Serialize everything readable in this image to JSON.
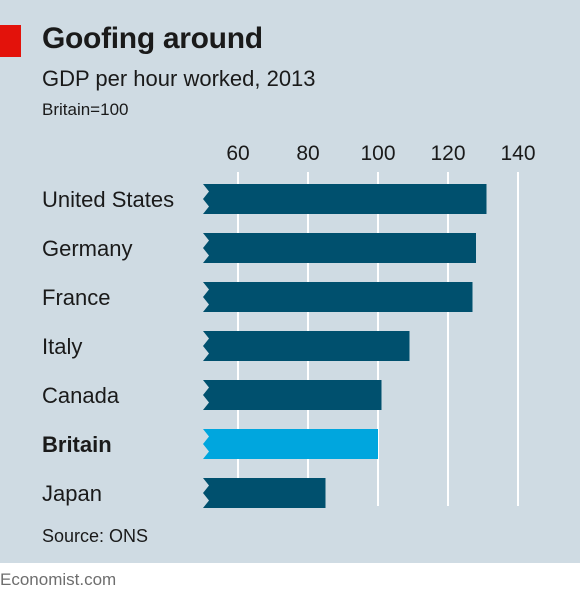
{
  "header": {
    "title": "Goofing around",
    "subtitle": "GDP per hour worked, 2013",
    "unit_note": "Britain=100"
  },
  "footer": {
    "source": "Source: ONS",
    "brand": "Economist.com"
  },
  "colors": {
    "background": "#cfdbe3",
    "bar": "#00506e",
    "highlight_bar": "#00a6de",
    "gridline": "#ffffff",
    "brand_red": "#e3120b"
  },
  "chart_data": {
    "type": "bar",
    "orientation": "horizontal",
    "title": "Goofing around",
    "subtitle": "GDP per hour worked, 2013",
    "unit_note": "Britain=100",
    "categories": [
      "United States",
      "Germany",
      "France",
      "Italy",
      "Canada",
      "Britain",
      "Japan"
    ],
    "values": [
      131,
      128,
      127,
      109,
      101,
      100,
      85
    ],
    "highlight": "Britain",
    "xticks": [
      60,
      80,
      100,
      120,
      140
    ],
    "xlim": [
      50,
      145
    ],
    "grid": true,
    "axis_position": "top",
    "source": "Source: ONS"
  }
}
